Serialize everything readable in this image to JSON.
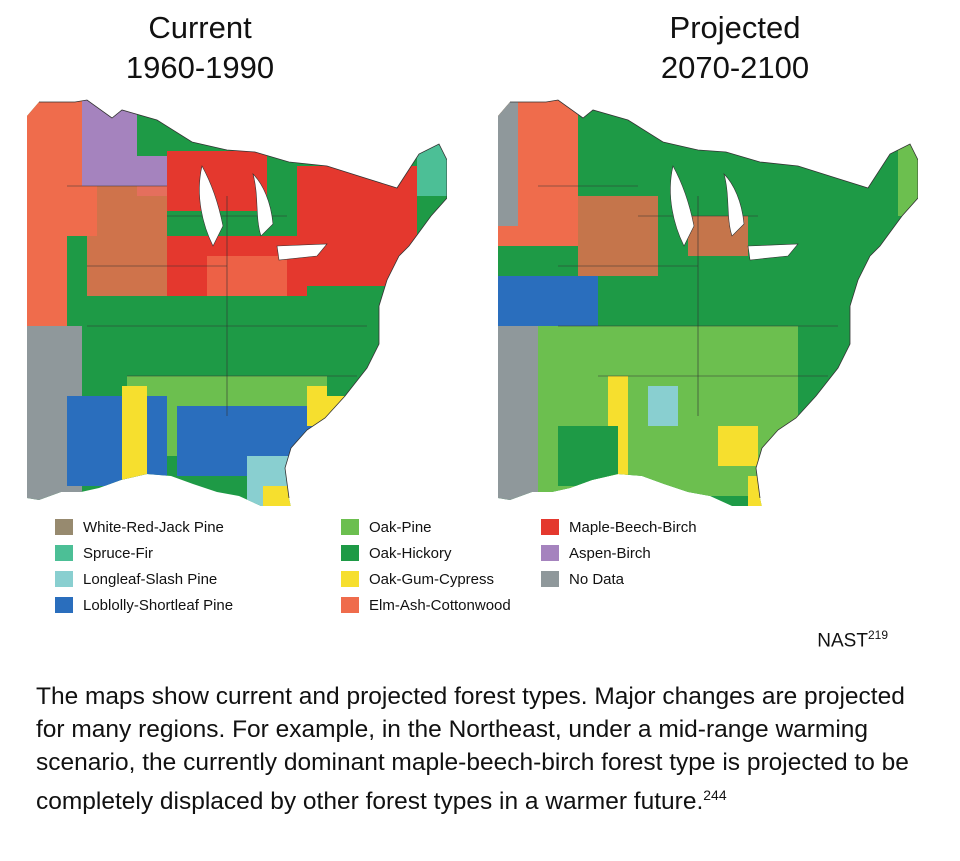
{
  "maps": [
    {
      "title_line1": "Current",
      "title_line2": "1960-1990"
    },
    {
      "title_line1": "Projected",
      "title_line2": "2070-2100"
    }
  ],
  "legend": [
    {
      "label": "White-Red-Jack Pine",
      "color": "#978a6f"
    },
    {
      "label": "Spruce-Fir",
      "color": "#4cbf96"
    },
    {
      "label": "Longleaf-Slash Pine",
      "color": "#89cfd0"
    },
    {
      "label": "Loblolly-Shortleaf Pine",
      "color": "#2a6ebd"
    },
    {
      "label": "Oak-Pine",
      "color": "#6cbf4f"
    },
    {
      "label": "Oak-Hickory",
      "color": "#1e9a46"
    },
    {
      "label": "Oak-Gum-Cypress",
      "color": "#f6df2e"
    },
    {
      "label": "Elm-Ash-Cottonwood",
      "color": "#ef6c4c"
    },
    {
      "label": "Maple-Beech-Birch",
      "color": "#e4382e"
    },
    {
      "label": "Aspen-Birch",
      "color": "#a583be"
    },
    {
      "label": "No Data",
      "color": "#8f989b"
    }
  ],
  "credit": {
    "text": "NAST",
    "ref": "219"
  },
  "caption": {
    "text": "The maps show current and projected forest types. Major changes are projected for many regions. For example, in the Northeast, under a mid-range warming scenario, the currently dominant maple-beech-birch forest type is projected to be completely displaced by other forest types in a warmer future.",
    "ref": "244"
  }
}
